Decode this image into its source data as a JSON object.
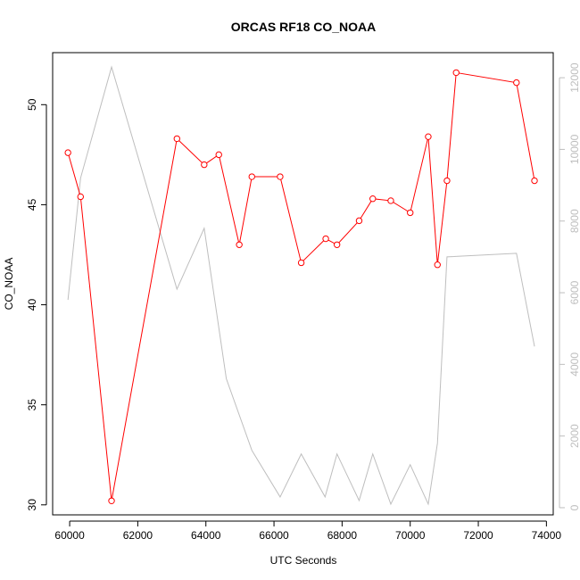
{
  "chart_data": {
    "type": "line",
    "title": "ORCAS RF18 CO_NOAA",
    "xlabel": "UTC Seconds",
    "ylabel": "CO_NOAA",
    "xlim": [
      59500,
      74200
    ],
    "ylim": [
      29.5,
      52.6
    ],
    "y2lim": [
      -200,
      12700
    ],
    "x_ticks": [
      60000,
      62000,
      64000,
      66000,
      68000,
      70000,
      72000,
      74000
    ],
    "y_ticks": [
      30,
      35,
      40,
      45,
      50
    ],
    "y2_ticks": [
      0,
      2000,
      4000,
      6000,
      8000,
      10000,
      12000
    ],
    "grid": false,
    "colors": {
      "primary": "#ff0000",
      "secondary": "#bebebe",
      "axis": "#000000"
    },
    "series": [
      {
        "axis": "left",
        "color": "#ff0000",
        "marker": "open-circle",
        "x": [
          59950,
          60320,
          61230,
          63150,
          63950,
          64380,
          64980,
          65350,
          66180,
          66800,
          67520,
          67850,
          68500,
          68900,
          69430,
          70000,
          70530,
          70800,
          71080,
          71350,
          73120,
          73650
        ],
        "y": [
          47.6,
          45.4,
          30.2,
          48.3,
          47.0,
          47.5,
          43.0,
          46.4,
          46.4,
          42.1,
          43.3,
          43.0,
          44.2,
          45.3,
          45.2,
          44.6,
          48.4,
          42.0,
          46.2,
          51.6,
          51.1,
          46.2
        ]
      },
      {
        "axis": "right",
        "color": "#bebebe",
        "marker": "none",
        "x": [
          59950,
          60320,
          61230,
          63150,
          63950,
          64600,
          65350,
          66180,
          66800,
          67500,
          67850,
          68500,
          68900,
          69430,
          70000,
          70530,
          70800,
          71080,
          73120,
          73650
        ],
        "y": [
          5800,
          9200,
          12300,
          6100,
          7800,
          3600,
          1600,
          300,
          1500,
          300,
          1500,
          200,
          1500,
          100,
          1200,
          100,
          1800,
          7000,
          7100,
          4500
        ]
      }
    ]
  }
}
